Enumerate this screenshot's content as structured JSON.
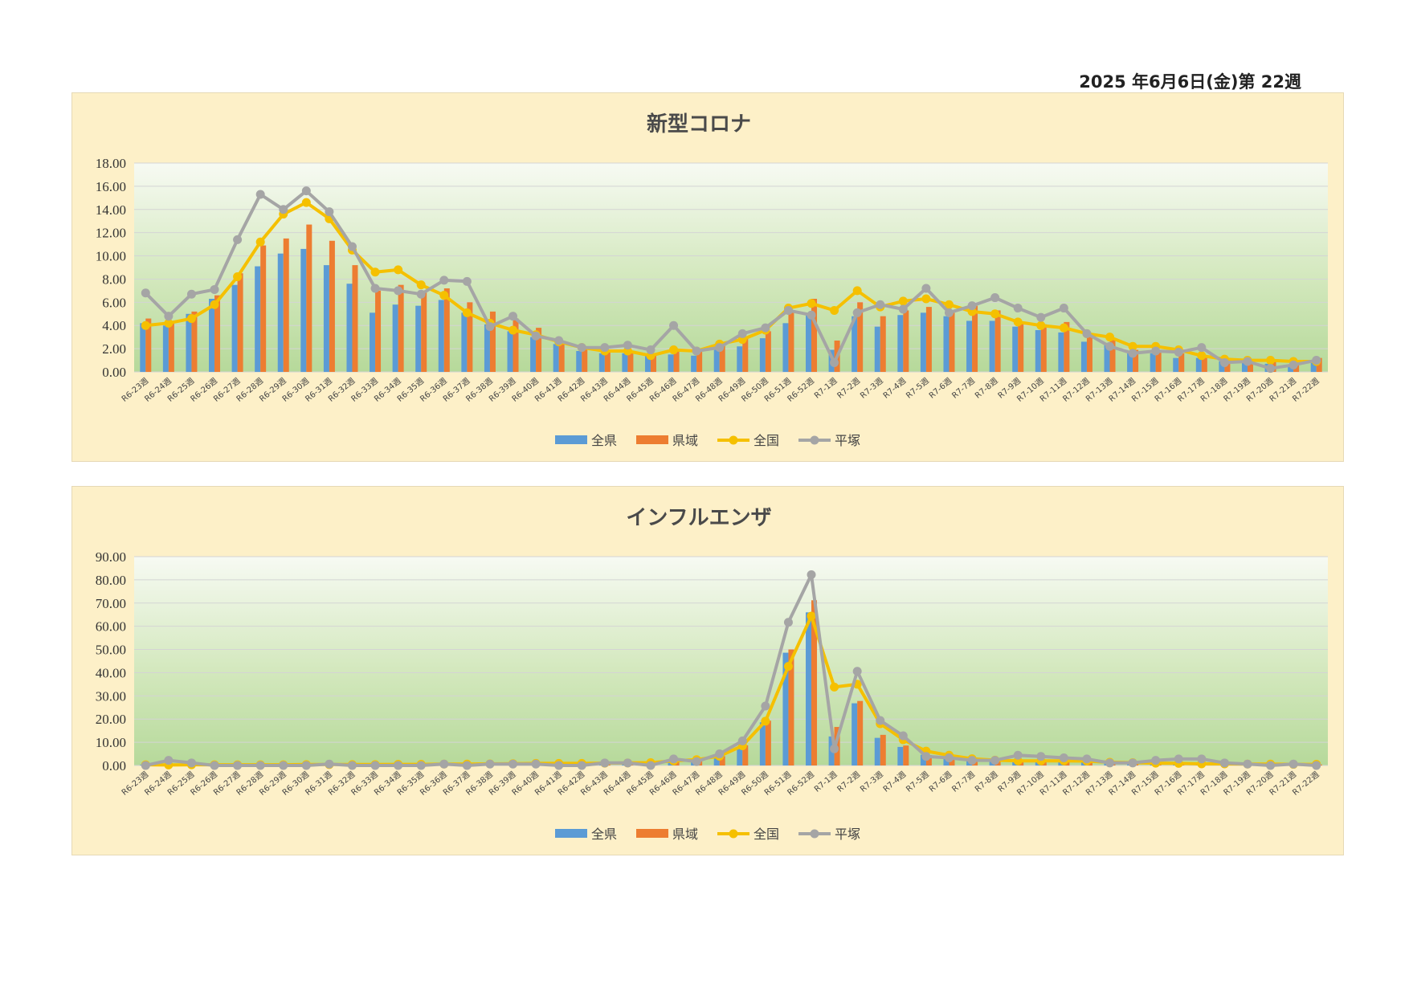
{
  "header": {
    "date_text": "2025 年6月6日(金)第 22週"
  },
  "colors": {
    "zenken": "#5b9bd5",
    "kenki": "#ed7d31",
    "zenkoku": "#f5c000",
    "hiratsuka": "#a5a5a5"
  },
  "chart_data": [
    {
      "type": "bar",
      "title": "新型コロナ",
      "ylim": [
        0,
        18
      ],
      "yticks": [
        "0.00",
        "2.00",
        "4.00",
        "6.00",
        "8.00",
        "10.00",
        "12.00",
        "14.00",
        "16.00",
        "18.00"
      ],
      "legend_position": "bottom",
      "categories": [
        "R6-23週",
        "R6-24週",
        "R6-25週",
        "R6-26週",
        "R6-27週",
        "R6-28週",
        "R6-29週",
        "R6-30週",
        "R6-31週",
        "R6-32週",
        "R6-33週",
        "R6-34週",
        "R6-35週",
        "R6-36週",
        "R6-37週",
        "R6-38週",
        "R6-39週",
        "R6-40週",
        "R6-41週",
        "R6-42週",
        "R6-43週",
        "R6-44週",
        "R6-45週",
        "R6-46週",
        "R6-47週",
        "R6-48週",
        "R6-49週",
        "R6-50週",
        "R6-51週",
        "R6-52週",
        "R7-1週",
        "R7-2週",
        "R7-3週",
        "R7-4週",
        "R7-5週",
        "R7-6週",
        "R7-7週",
        "R7-8週",
        "R7-9週",
        "R7-10週",
        "R7-11週",
        "R7-12週",
        "R7-13週",
        "R7-14週",
        "R7-15週",
        "R7-16週",
        "R7-17週",
        "R7-18週",
        "R7-19週",
        "R7-20週",
        "R7-21週",
        "R7-22週"
      ],
      "series": [
        {
          "name": "全県",
          "kind": "bar",
          "color": "#5b9bd5",
          "values": [
            4.2,
            4.0,
            5.0,
            6.3,
            7.5,
            9.1,
            10.2,
            10.6,
            9.2,
            7.6,
            5.1,
            5.8,
            5.7,
            6.2,
            5.1,
            4.1,
            3.5,
            3.0,
            2.4,
            1.8,
            1.6,
            1.6,
            1.4,
            1.5,
            1.4,
            1.9,
            2.2,
            2.9,
            4.2,
            5.1,
            1.9,
            4.8,
            3.9,
            4.9,
            5.1,
            4.8,
            4.4,
            4.4,
            3.9,
            3.6,
            3.4,
            2.6,
            2.4,
            1.6,
            1.6,
            1.2,
            1.2,
            0.9,
            0.8,
            0.7,
            0.6,
            0.9
          ]
        },
        {
          "name": "県域",
          "kind": "bar",
          "color": "#ed7d31",
          "values": [
            4.6,
            4.3,
            5.2,
            6.6,
            8.5,
            10.9,
            11.5,
            12.7,
            11.3,
            9.2,
            7.0,
            7.5,
            7.0,
            7.2,
            6.0,
            5.2,
            4.6,
            3.8,
            2.6,
            2.0,
            1.8,
            1.8,
            1.6,
            1.8,
            1.9,
            2.3,
            3.0,
            3.5,
            5.3,
            6.3,
            2.7,
            6.0,
            4.8,
            5.3,
            5.6,
            5.3,
            5.7,
            5.3,
            4.3,
            4.1,
            4.3,
            3.2,
            2.8,
            1.9,
            1.8,
            1.6,
            1.4,
            1.1,
            0.9,
            0.9,
            0.8,
            1.2
          ]
        },
        {
          "name": "全国",
          "kind": "line",
          "color": "#f5c000",
          "values": [
            4.0,
            4.2,
            4.6,
            5.8,
            8.2,
            11.2,
            13.6,
            14.6,
            13.2,
            10.5,
            8.6,
            8.8,
            7.5,
            6.6,
            5.1,
            4.2,
            3.6,
            3.2,
            2.6,
            2.1,
            1.8,
            1.8,
            1.4,
            1.9,
            1.8,
            2.4,
            2.8,
            3.6,
            5.5,
            5.9,
            5.3,
            7.0,
            5.6,
            6.1,
            6.3,
            5.8,
            5.2,
            5.0,
            4.3,
            4.0,
            3.8,
            3.3,
            3.0,
            2.2,
            2.2,
            1.9,
            1.4,
            1.1,
            1.0,
            1.0,
            0.9,
            0.9
          ]
        },
        {
          "name": "平塚",
          "kind": "line",
          "color": "#a5a5a5",
          "values": [
            6.8,
            4.8,
            6.7,
            7.1,
            11.4,
            15.3,
            14.0,
            15.6,
            13.8,
            10.8,
            7.2,
            7.0,
            6.7,
            7.9,
            7.8,
            3.9,
            4.8,
            3.1,
            2.7,
            2.1,
            2.1,
            2.3,
            1.9,
            4.0,
            1.8,
            2.1,
            3.3,
            3.8,
            5.3,
            4.9,
            0.8,
            5.1,
            5.8,
            5.4,
            7.2,
            5.1,
            5.7,
            6.4,
            5.5,
            4.7,
            5.5,
            3.3,
            2.2,
            1.6,
            1.8,
            1.7,
            2.1,
            0.8,
            0.9,
            0.3,
            0.6,
            1.0
          ]
        }
      ]
    },
    {
      "type": "bar",
      "title": "インフルエンザ",
      "ylim": [
        0,
        90
      ],
      "yticks": [
        "0.00",
        "10.00",
        "20.00",
        "30.00",
        "40.00",
        "50.00",
        "60.00",
        "70.00",
        "80.00",
        "90.00"
      ],
      "legend_position": "bottom",
      "categories": [
        "R6-23週",
        "R6-24週",
        "R6-25週",
        "R6-26週",
        "R6-27週",
        "R6-28週",
        "R6-29週",
        "R6-30週",
        "R6-31週",
        "R6-32週",
        "R6-33週",
        "R6-34週",
        "R6-35週",
        "R6-36週",
        "R6-37週",
        "R6-38週",
        "R6-39週",
        "R6-40週",
        "R6-41週",
        "R6-42週",
        "R6-43週",
        "R6-44週",
        "R6-45週",
        "R6-46週",
        "R6-47週",
        "R6-48週",
        "R6-49週",
        "R6-50週",
        "R6-51週",
        "R6-52週",
        "R7-1週",
        "R7-2週",
        "R7-3週",
        "R7-4週",
        "R7-5週",
        "R7-6週",
        "R7-7週",
        "R7-8週",
        "R7-9週",
        "R7-10週",
        "R7-11週",
        "R7-12週",
        "R7-13週",
        "R7-14週",
        "R7-15週",
        "R7-16週",
        "R7-17週",
        "R7-18週",
        "R7-19週",
        "R7-20週",
        "R7-21週",
        "R7-22週"
      ],
      "series": [
        {
          "name": "全県",
          "kind": "bar",
          "color": "#5b9bd5",
          "values": [
            0.3,
            0.4,
            0.3,
            0.3,
            0.3,
            0.3,
            0.3,
            0.4,
            0.4,
            0.4,
            0.4,
            0.5,
            0.5,
            0.6,
            0.6,
            0.7,
            0.8,
            0.9,
            0.9,
            0.9,
            1.0,
            1.1,
            1.1,
            1.5,
            2.3,
            4.4,
            8.0,
            18.6,
            48.6,
            66.0,
            12.5,
            26.8,
            11.9,
            8.0,
            4.6,
            3.3,
            2.5,
            2.3,
            1.9,
            1.9,
            2.1,
            1.9,
            1.4,
            1.2,
            1.2,
            1.1,
            1.1,
            0.9,
            0.7,
            0.6,
            0.5,
            0.5
          ]
        },
        {
          "name": "県域",
          "kind": "bar",
          "color": "#ed7d31",
          "values": [
            0.3,
            0.4,
            0.3,
            0.3,
            0.3,
            0.3,
            0.3,
            0.4,
            0.4,
            0.4,
            0.4,
            0.5,
            0.5,
            0.6,
            0.6,
            0.7,
            0.8,
            0.9,
            0.9,
            0.9,
            1.0,
            1.1,
            1.1,
            1.7,
            2.6,
            4.0,
            8.7,
            19.3,
            50.0,
            71.2,
            16.6,
            27.8,
            13.2,
            8.6,
            4.5,
            3.1,
            2.4,
            2.2,
            1.8,
            1.8,
            2.0,
            1.8,
            1.3,
            1.1,
            1.1,
            1.0,
            1.0,
            0.8,
            0.6,
            0.5,
            0.4,
            0.4
          ]
        },
        {
          "name": "全国",
          "kind": "line",
          "color": "#f5c000",
          "values": [
            0.3,
            0.2,
            0.3,
            0.3,
            0.3,
            0.3,
            0.3,
            0.4,
            0.4,
            0.4,
            0.4,
            0.5,
            0.5,
            0.6,
            0.6,
            0.7,
            0.8,
            0.9,
            0.9,
            0.9,
            1.0,
            1.1,
            1.2,
            2.0,
            2.5,
            4.0,
            8.5,
            19.1,
            42.7,
            64.4,
            33.8,
            35.0,
            18.0,
            11.1,
            6.2,
            4.4,
            2.9,
            2.3,
            2.0,
            2.0,
            2.0,
            1.9,
            1.4,
            1.2,
            1.0,
            0.9,
            0.7,
            0.7,
            0.6,
            0.6,
            0.5,
            0.5
          ]
        },
        {
          "name": "平塚",
          "kind": "line",
          "color": "#a5a5a5",
          "values": [
            0.0,
            2.2,
            1.1,
            0.0,
            0.0,
            0.0,
            0.0,
            0.0,
            0.6,
            0.0,
            0.0,
            0.0,
            0.0,
            0.6,
            0.0,
            0.6,
            0.6,
            0.6,
            0.0,
            0.0,
            1.1,
            1.1,
            0.0,
            2.8,
            1.7,
            5.0,
            10.6,
            25.6,
            61.7,
            82.2,
            7.2,
            40.6,
            19.4,
            12.8,
            3.9,
            3.3,
            2.2,
            2.2,
            4.4,
            3.9,
            3.3,
            2.8,
            1.1,
            1.1,
            2.2,
            2.8,
            2.8,
            1.1,
            0.6,
            0.0,
            0.6,
            0.0
          ]
        }
      ]
    }
  ]
}
